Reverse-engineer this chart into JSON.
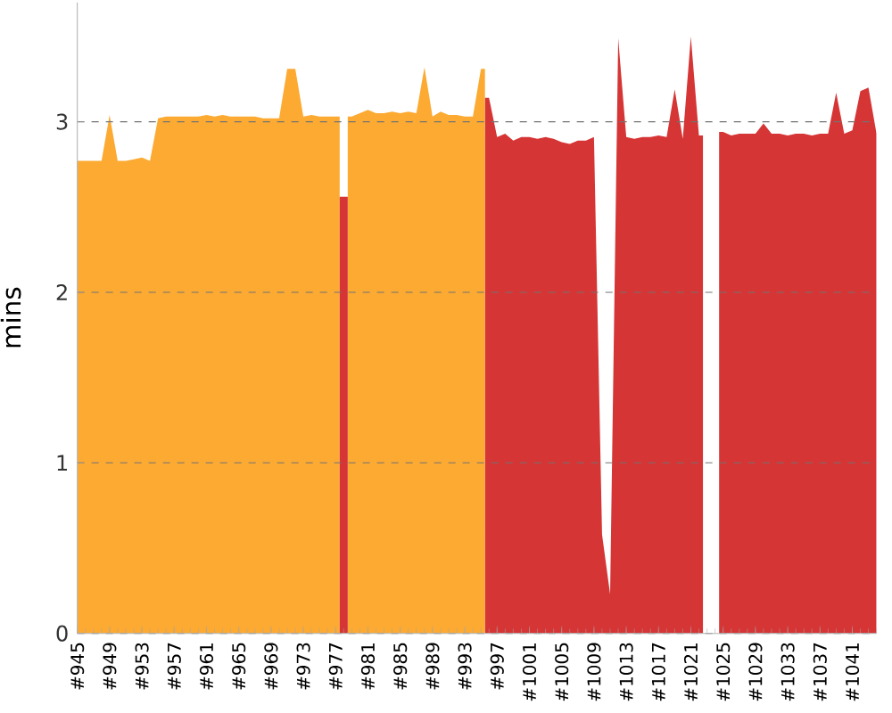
{
  "chart_data": {
    "type": "area",
    "ylabel": "mins",
    "grid": "y",
    "categories": [
      "#945",
      null,
      null,
      null,
      "#949",
      null,
      null,
      null,
      "#953",
      null,
      null,
      null,
      "#957",
      null,
      null,
      null,
      "#961",
      null,
      null,
      null,
      "#965",
      null,
      null,
      null,
      "#969",
      null,
      null,
      null,
      "#973",
      null,
      null,
      null,
      "#977",
      null,
      null,
      null,
      "#981",
      null,
      null,
      null,
      "#985",
      null,
      null,
      null,
      "#989",
      null,
      null,
      null,
      "#993",
      null,
      null,
      null,
      "#997",
      null,
      null,
      null,
      "#1001",
      null,
      null,
      null,
      "#1005",
      null,
      null,
      null,
      "#1009",
      null,
      null,
      null,
      "#1013",
      null,
      null,
      null,
      "#1017",
      null,
      null,
      null,
      "#1021",
      null,
      null,
      null,
      "#1025",
      null,
      null,
      null,
      "#1029",
      null,
      null,
      null,
      "#1033",
      null,
      null,
      null,
      "#1037",
      null,
      null,
      null,
      "#1041",
      null,
      null,
      null
    ],
    "ylim": [
      0,
      3.7
    ],
    "yticks": [
      0,
      1,
      2,
      3
    ],
    "series": [
      {
        "color": "#fcaa32",
        "values": [
          2.77,
          2.77,
          2.77,
          2.77,
          3.04,
          2.77,
          2.77,
          2.78,
          2.79,
          2.77,
          3.02,
          3.03,
          3.03,
          3.03,
          3.03,
          3.03,
          3.04,
          3.03,
          3.04,
          3.03,
          3.03,
          3.03,
          3.03,
          3.02,
          3.02,
          3.02,
          3.31,
          3.31,
          3.03,
          3.04,
          3.03,
          3.03,
          3.03,
          null,
          3.03,
          3.05,
          3.07,
          3.05,
          3.05,
          3.06,
          3.05,
          3.06,
          3.05,
          3.32,
          3.03,
          3.06,
          3.04,
          3.04,
          3.03,
          3.03,
          3.31,
          null,
          null,
          null,
          null,
          null,
          null,
          null,
          null,
          null,
          null,
          null,
          null,
          null,
          null,
          null,
          null,
          null,
          null,
          null,
          null,
          null,
          null,
          null,
          null,
          null,
          null,
          null,
          null,
          null,
          null,
          null,
          null,
          null,
          null,
          null,
          null,
          null,
          null,
          null,
          null,
          null,
          null,
          null,
          null,
          null,
          null,
          null,
          null,
          null
        ]
      },
      {
        "color": "#d63535",
        "values": [
          null,
          null,
          null,
          null,
          null,
          null,
          null,
          null,
          null,
          null,
          null,
          null,
          null,
          null,
          null,
          null,
          null,
          null,
          null,
          null,
          null,
          null,
          null,
          null,
          null,
          null,
          null,
          null,
          null,
          null,
          null,
          null,
          null,
          2.56,
          null,
          null,
          null,
          null,
          null,
          null,
          null,
          null,
          null,
          null,
          null,
          null,
          null,
          null,
          null,
          null,
          null,
          3.14,
          2.91,
          2.93,
          2.89,
          2.91,
          2.91,
          2.9,
          2.91,
          2.9,
          2.88,
          2.87,
          2.89,
          2.89,
          2.91,
          0.58,
          0.23,
          3.49,
          2.91,
          2.9,
          2.91,
          2.91,
          2.92,
          2.91,
          3.19,
          2.9,
          3.5,
          2.92,
          null,
          null,
          2.94,
          2.92,
          2.93,
          2.93,
          2.93,
          2.99,
          2.93,
          2.93,
          2.92,
          2.93,
          2.93,
          2.92,
          2.93,
          2.93,
          3.17,
          2.93,
          2.95,
          3.18,
          3.2,
          2.93
        ]
      }
    ]
  }
}
